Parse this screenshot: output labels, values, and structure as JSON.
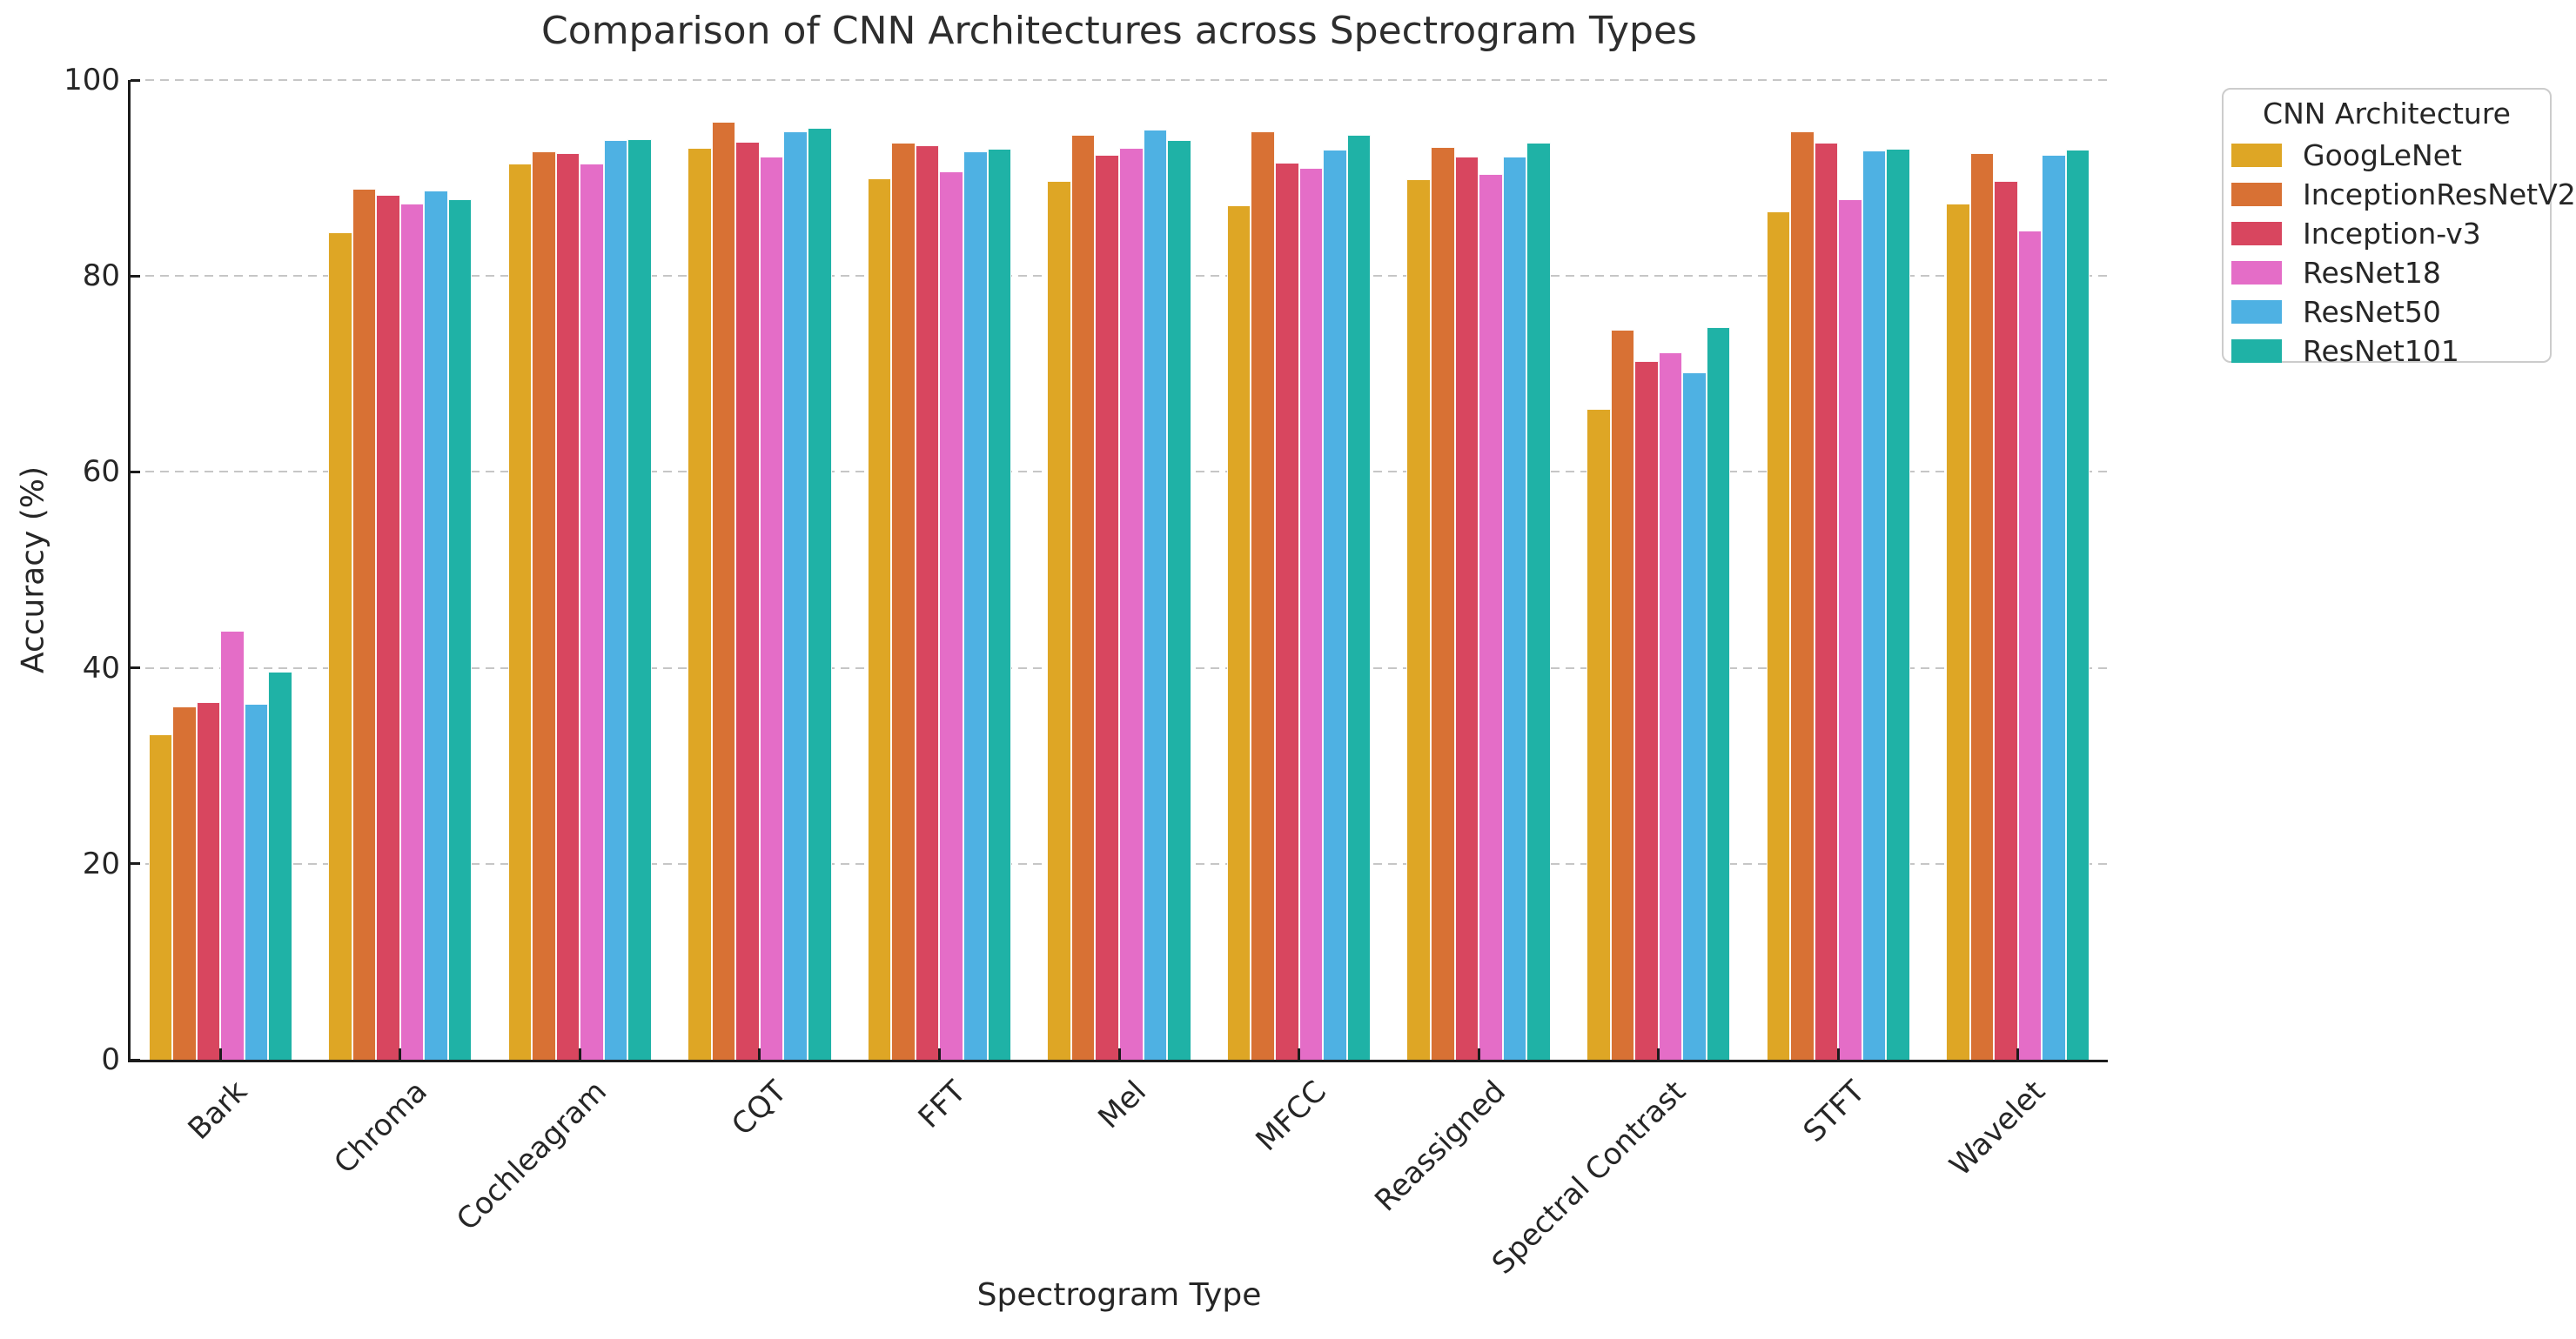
{
  "chart_data": {
    "type": "bar",
    "title": "Comparison of CNN Architectures across Spectrogram Types",
    "xlabel": "Spectrogram Type",
    "ylabel": "Accuracy (%)",
    "ylim": [
      0,
      100
    ],
    "yticks": [
      0,
      20,
      40,
      60,
      80,
      100
    ],
    "grid": "horizontal dashed gridlines at each y tick",
    "legend_title": "CNN Architecture",
    "legend_position": "outside top-right",
    "categories": [
      "Bark",
      "Chroma",
      "Cochleagram",
      "CQT",
      "FFT",
      "Mel",
      "MFCC",
      "Reassigned",
      "Spectral Contrast",
      "STFT",
      "Wavelet"
    ],
    "series": [
      {
        "name": "GoogLeNet",
        "color": "#DEA625",
        "values": [
          33.2,
          84.5,
          91.5,
          93.1,
          90.0,
          89.7,
          87.2,
          89.9,
          66.4,
          86.6,
          87.4
        ]
      },
      {
        "name": "InceptionResNetV2",
        "color": "#D87134",
        "values": [
          36.1,
          88.9,
          92.7,
          95.7,
          93.6,
          94.4,
          94.8,
          93.2,
          74.5,
          94.8,
          92.5
        ]
      },
      {
        "name": "Inception-v3",
        "color": "#D8465F",
        "values": [
          36.5,
          88.3,
          92.5,
          93.7,
          93.3,
          92.4,
          91.6,
          92.2,
          71.3,
          93.6,
          89.7
        ]
      },
      {
        "name": "ResNet18",
        "color": "#E46DC7",
        "values": [
          43.8,
          87.4,
          91.5,
          92.2,
          90.7,
          93.1,
          91.0,
          90.4,
          72.2,
          87.8,
          84.6
        ]
      },
      {
        "name": "ResNet50",
        "color": "#4EB1E3",
        "values": [
          36.3,
          88.7,
          93.9,
          94.8,
          92.7,
          94.9,
          92.9,
          92.2,
          70.2,
          92.8,
          92.4
        ]
      },
      {
        "name": "ResNet101",
        "color": "#1FB2A6",
        "values": [
          39.6,
          87.8,
          94.0,
          95.1,
          93.0,
          93.9,
          94.4,
          93.6,
          74.8,
          93.0,
          92.9
        ]
      }
    ],
    "axis_colors": {
      "spine": "#1c1c1c",
      "grid": "#c6c6c6",
      "text": "#262626"
    }
  }
}
